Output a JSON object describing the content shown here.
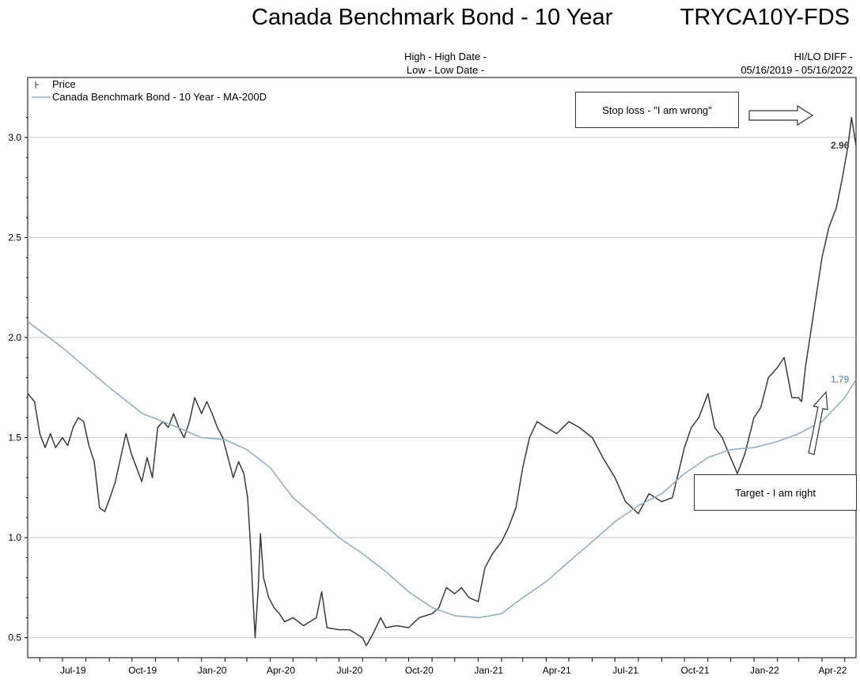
{
  "header": {
    "title": "Canada Benchmark Bond - 10 Year",
    "ticker": "TRYCA10Y-FDS",
    "high_label": "High - High Date -",
    "low_label": "Low - Low Date -",
    "hilo_label": "HI/LO DIFF -",
    "date_range": "05/16/2019 - 05/16/2022"
  },
  "legend": {
    "price": "Price",
    "ma": "Canada Benchmark Bond - 10 Year - MA-200D"
  },
  "annotations": {
    "stop_loss": "Stop loss - \"I am wrong\"",
    "target": "Target - I am right"
  },
  "colors": {
    "price": "#3a3a3a",
    "ma": "#8fb0c8",
    "grid": "#c8c8c8",
    "axis": "#000000"
  },
  "chart_data": {
    "type": "line",
    "x_ticks": [
      "Jul-19",
      "Oct-19",
      "Jan-20",
      "Apr-20",
      "Jul-20",
      "Oct-20",
      "Jan-21",
      "Apr-21",
      "Jul-21",
      "Oct-21",
      "Jan-22",
      "Apr-22"
    ],
    "y_ticks": [
      "0.5",
      "1.0",
      "1.5",
      "2.0",
      "2.5",
      "3.0"
    ],
    "ylim": [
      0.4,
      3.3
    ],
    "xlim": [
      "2019-05-16",
      "2022-05-16"
    ],
    "last_labels": {
      "price": "2.96",
      "ma": "1.79"
    },
    "series": [
      {
        "name": "Price",
        "x": [
          "2019-05-16",
          "2019-05-25",
          "2019-06-01",
          "2019-06-08",
          "2019-06-15",
          "2019-06-22",
          "2019-07-01",
          "2019-07-08",
          "2019-07-15",
          "2019-07-22",
          "2019-07-29",
          "2019-08-05",
          "2019-08-12",
          "2019-08-19",
          "2019-08-26",
          "2019-09-02",
          "2019-09-09",
          "2019-09-16",
          "2019-09-23",
          "2019-09-30",
          "2019-10-07",
          "2019-10-14",
          "2019-10-21",
          "2019-10-28",
          "2019-11-04",
          "2019-11-11",
          "2019-11-18",
          "2019-11-25",
          "2019-12-02",
          "2019-12-09",
          "2019-12-16",
          "2019-12-23",
          "2020-01-01",
          "2020-01-08",
          "2020-01-15",
          "2020-01-22",
          "2020-01-29",
          "2020-02-05",
          "2020-02-12",
          "2020-02-19",
          "2020-02-26",
          "2020-03-02",
          "2020-03-06",
          "2020-03-09",
          "2020-03-12",
          "2020-03-16",
          "2020-03-19",
          "2020-03-23",
          "2020-03-30",
          "2020-04-06",
          "2020-04-13",
          "2020-04-20",
          "2020-05-01",
          "2020-05-15",
          "2020-06-01",
          "2020-06-08",
          "2020-06-15",
          "2020-07-01",
          "2020-07-15",
          "2020-08-01",
          "2020-08-06",
          "2020-08-15",
          "2020-08-25",
          "2020-09-01",
          "2020-09-15",
          "2020-10-01",
          "2020-10-15",
          "2020-11-01",
          "2020-11-10",
          "2020-11-20",
          "2020-12-01",
          "2020-12-10",
          "2020-12-20",
          "2021-01-01",
          "2021-01-10",
          "2021-01-20",
          "2021-02-01",
          "2021-02-10",
          "2021-02-20",
          "2021-03-01",
          "2021-03-10",
          "2021-03-20",
          "2021-04-01",
          "2021-04-15",
          "2021-05-01",
          "2021-05-15",
          "2021-06-01",
          "2021-06-15",
          "2021-07-01",
          "2021-07-15",
          "2021-08-01",
          "2021-08-15",
          "2021-09-01",
          "2021-09-15",
          "2021-10-01",
          "2021-10-10",
          "2021-10-20",
          "2021-11-01",
          "2021-11-10",
          "2021-11-20",
          "2021-12-01",
          "2021-12-10",
          "2021-12-20",
          "2022-01-01",
          "2022-01-10",
          "2022-01-20",
          "2022-02-01",
          "2022-02-10",
          "2022-02-20",
          "2022-03-01",
          "2022-03-05",
          "2022-03-10",
          "2022-03-20",
          "2022-04-01",
          "2022-04-10",
          "2022-04-20",
          "2022-04-28",
          "2022-05-05",
          "2022-05-10",
          "2022-05-16"
        ],
        "y": [
          1.72,
          1.68,
          1.52,
          1.45,
          1.52,
          1.45,
          1.5,
          1.46,
          1.55,
          1.6,
          1.58,
          1.46,
          1.38,
          1.15,
          1.13,
          1.2,
          1.28,
          1.4,
          1.52,
          1.42,
          1.35,
          1.28,
          1.4,
          1.3,
          1.55,
          1.58,
          1.55,
          1.62,
          1.55,
          1.5,
          1.58,
          1.7,
          1.62,
          1.68,
          1.62,
          1.55,
          1.5,
          1.4,
          1.3,
          1.38,
          1.32,
          1.2,
          0.95,
          0.7,
          0.5,
          0.75,
          1.02,
          0.8,
          0.7,
          0.65,
          0.62,
          0.58,
          0.6,
          0.56,
          0.6,
          0.73,
          0.55,
          0.54,
          0.54,
          0.5,
          0.46,
          0.52,
          0.6,
          0.55,
          0.56,
          0.55,
          0.6,
          0.62,
          0.65,
          0.75,
          0.72,
          0.75,
          0.7,
          0.68,
          0.85,
          0.92,
          0.98,
          1.05,
          1.15,
          1.35,
          1.5,
          1.58,
          1.55,
          1.52,
          1.58,
          1.55,
          1.5,
          1.4,
          1.3,
          1.18,
          1.12,
          1.22,
          1.18,
          1.2,
          1.45,
          1.55,
          1.6,
          1.72,
          1.55,
          1.5,
          1.4,
          1.32,
          1.42,
          1.6,
          1.65,
          1.8,
          1.85,
          1.9,
          1.7,
          1.7,
          1.68,
          1.85,
          2.1,
          2.4,
          2.55,
          2.65,
          2.8,
          2.95,
          3.1,
          2.96
        ]
      },
      {
        "name": "Canada Benchmark Bond - 10 Year - MA-200D",
        "x": [
          "2019-05-16",
          "2019-07-01",
          "2019-09-01",
          "2019-10-15",
          "2019-12-01",
          "2020-01-01",
          "2020-02-01",
          "2020-03-01",
          "2020-04-01",
          "2020-05-01",
          "2020-06-01",
          "2020-07-01",
          "2020-08-01",
          "2020-09-01",
          "2020-10-01",
          "2020-11-01",
          "2020-12-01",
          "2021-01-01",
          "2021-02-01",
          "2021-03-01",
          "2021-04-01",
          "2021-05-01",
          "2021-06-01",
          "2021-07-01",
          "2021-08-01",
          "2021-09-01",
          "2021-10-01",
          "2021-11-01",
          "2021-12-01",
          "2022-01-01",
          "2022-02-01",
          "2022-03-01",
          "2022-04-01",
          "2022-05-01",
          "2022-05-16"
        ],
        "y": [
          2.08,
          1.95,
          1.75,
          1.62,
          1.55,
          1.5,
          1.49,
          1.44,
          1.35,
          1.2,
          1.1,
          1.0,
          0.92,
          0.83,
          0.73,
          0.65,
          0.61,
          0.6,
          0.62,
          0.7,
          0.78,
          0.88,
          0.98,
          1.08,
          1.16,
          1.22,
          1.32,
          1.4,
          1.44,
          1.45,
          1.48,
          1.52,
          1.58,
          1.7,
          1.79
        ]
      }
    ]
  }
}
